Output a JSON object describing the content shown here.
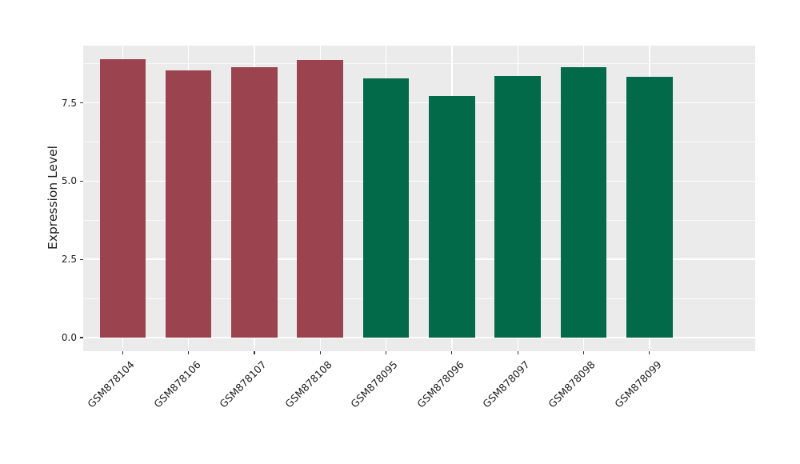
{
  "figure": {
    "background": "#ffffff",
    "text_color": "#1c1c1c",
    "tick_color": "#333333"
  },
  "chart_data": {
    "type": "bar",
    "title": "",
    "xlabel": "",
    "ylabel": "Expression Level",
    "categories": [
      "GSM878104",
      "GSM878106",
      "GSM878107",
      "GSM878108",
      "GSM878095",
      "GSM878096",
      "GSM878097",
      "GSM878098",
      "GSM878099"
    ],
    "values": [
      8.9,
      8.54,
      8.65,
      8.88,
      8.27,
      7.72,
      8.37,
      8.64,
      8.34
    ],
    "bar_colors": [
      "#9B4450",
      "#9B4450",
      "#9B4450",
      "#9B4450",
      "#026A49",
      "#026A49",
      "#026A49",
      "#026A49",
      "#026A49"
    ],
    "color_groups": [
      {
        "color": "#9B4450",
        "label": "maroon-group",
        "categories": [
          "GSM878104",
          "GSM878106",
          "GSM878107",
          "GSM878108"
        ]
      },
      {
        "color": "#026A49",
        "label": "green-group",
        "categories": [
          "GSM878095",
          "GSM878096",
          "GSM878097",
          "GSM878098",
          "GSM878099"
        ]
      }
    ],
    "yticks": [
      0.0,
      2.5,
      5.0,
      7.5
    ],
    "ytick_labels": [
      "0.0",
      "2.5",
      "5.0",
      "7.5"
    ],
    "minor_yticks": [
      1.25,
      3.75,
      6.25,
      8.75
    ],
    "ylim": [
      -0.42,
      9.33
    ],
    "bar_width_fraction": 0.7,
    "x_edge_padding": 0.6,
    "grid": "on",
    "legend": "none",
    "panel_background": "#EBEBEB",
    "grid_major_color": "#FFFFFF",
    "grid_minor_color": "rgba(255,255,255,0.7)"
  }
}
